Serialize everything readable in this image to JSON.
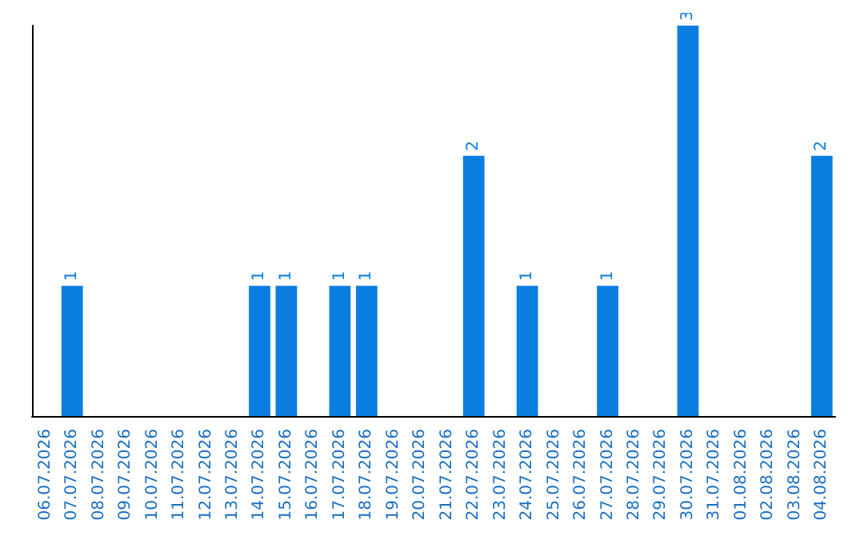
{
  "chart_data": {
    "type": "bar",
    "categories": [
      "06.07.2026",
      "07.07.2026",
      "08.07.2026",
      "09.07.2026",
      "10.07.2026",
      "11.07.2026",
      "12.07.2026",
      "13.07.2026",
      "14.07.2026",
      "15.07.2026",
      "16.07.2026",
      "17.07.2026",
      "18.07.2026",
      "19.07.2026",
      "20.07.2026",
      "21.07.2026",
      "22.07.2026",
      "23.07.2026",
      "24.07.2026",
      "25.07.2026",
      "26.07.2026",
      "27.07.2026",
      "28.07.2026",
      "29.07.2026",
      "30.07.2026",
      "31.07.2026",
      "01.08.2026",
      "02.08.2026",
      "03.08.2026",
      "04.08.2026"
    ],
    "values": [
      0,
      1,
      0,
      0,
      0,
      0,
      0,
      0,
      1,
      1,
      0,
      1,
      1,
      0,
      0,
      0,
      2,
      0,
      1,
      0,
      0,
      1,
      0,
      0,
      3,
      0,
      0,
      0,
      0,
      2
    ],
    "value_labels": [
      null,
      "1",
      null,
      null,
      null,
      null,
      null,
      null,
      "1",
      "1",
      null,
      "1",
      "1",
      null,
      null,
      null,
      "2",
      null,
      "1",
      null,
      null,
      "1",
      null,
      null,
      "3",
      null,
      null,
      null,
      null,
      "2"
    ],
    "color": "#0a7ee0",
    "grid": false,
    "tick_labels": "x"
  }
}
